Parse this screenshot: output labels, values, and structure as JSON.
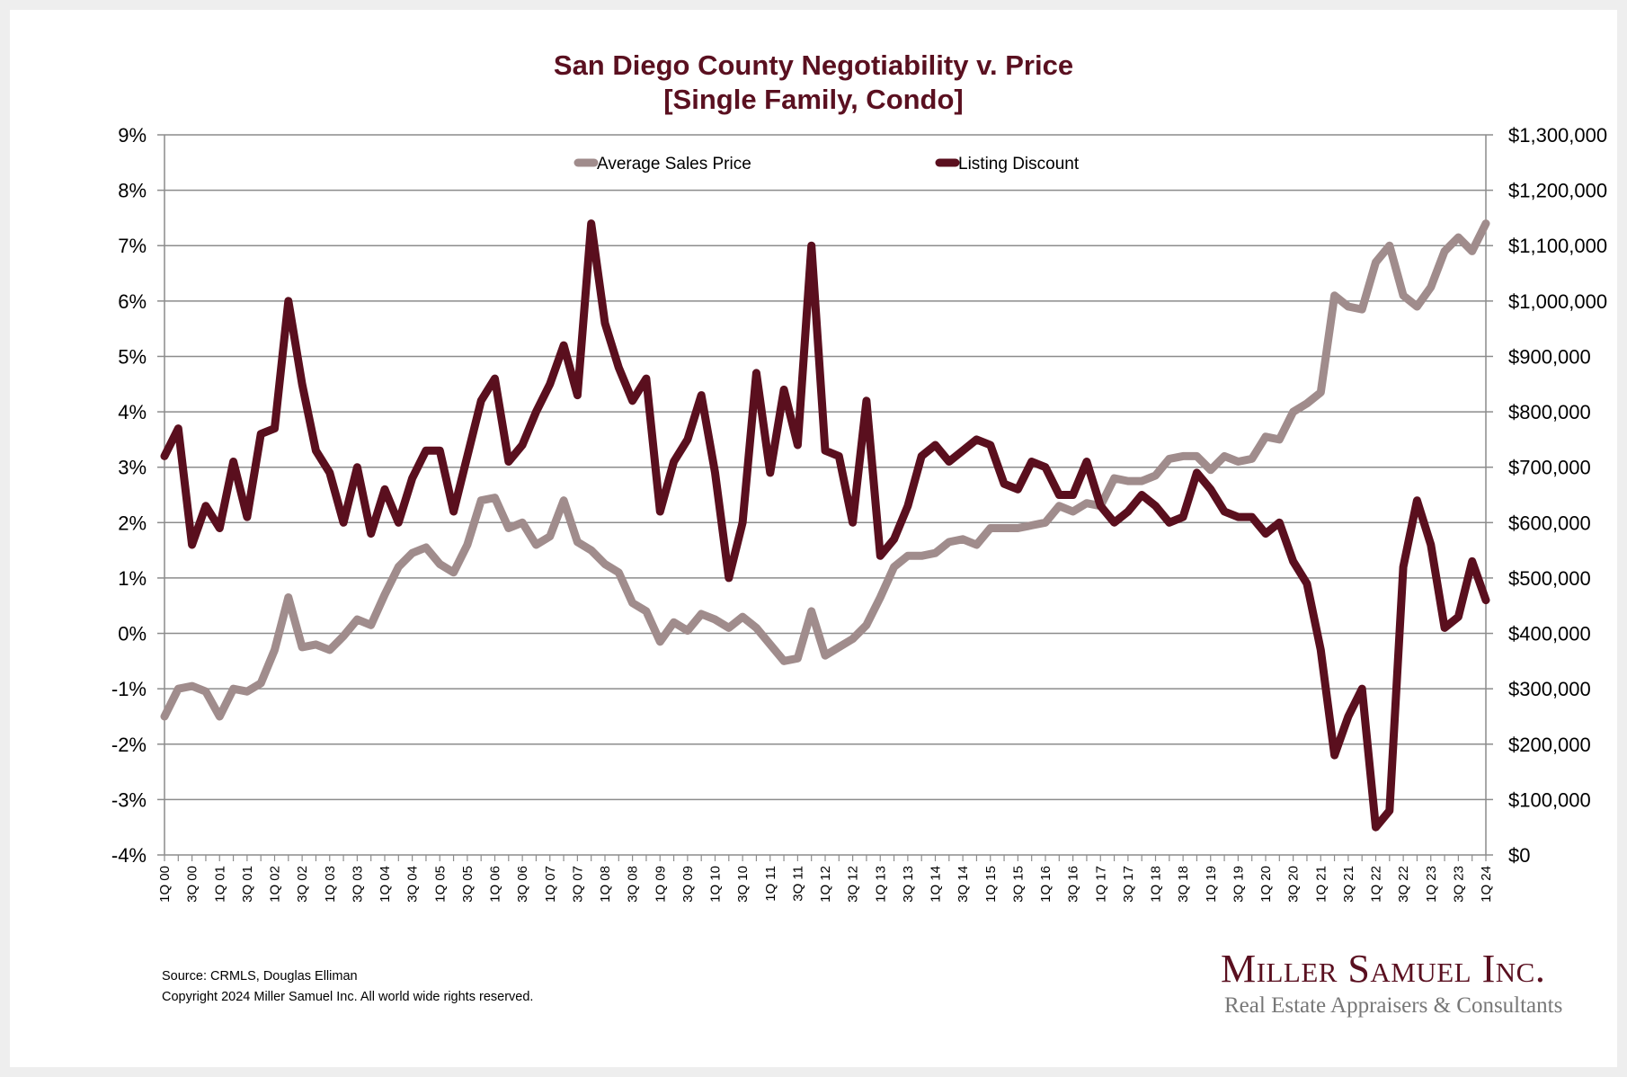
{
  "chart_data": {
    "type": "line",
    "title": "San Diego County Negotiability v. Price",
    "subtitle": "[Single Family, Condo]",
    "xlabel": "",
    "ylabel_left": "",
    "ylabel_right": "",
    "y_left_lim": [
      -4,
      9
    ],
    "y_left_ticks": [
      "9%",
      "8%",
      "7%",
      "6%",
      "5%",
      "4%",
      "3%",
      "2%",
      "1%",
      "0%",
      "-1%",
      "-2%",
      "-3%",
      "-4%"
    ],
    "y_right_lim": [
      0,
      1300000
    ],
    "y_right_ticks": [
      "$1,300,000",
      "$1,200,000",
      "$1,100,000",
      "$1,000,000",
      "$900,000",
      "$800,000",
      "$700,000",
      "$600,000",
      "$500,000",
      "$400,000",
      "$300,000",
      "$200,000",
      "$100,000",
      "$0"
    ],
    "grid": true,
    "legend_position": "top-center",
    "x_tick_labels": [
      "1Q 00",
      "3Q 00",
      "1Q 01",
      "3Q 01",
      "1Q 02",
      "3Q 02",
      "1Q 03",
      "3Q 03",
      "1Q 04",
      "3Q 04",
      "1Q 05",
      "3Q 05",
      "1Q 06",
      "3Q 06",
      "1Q 07",
      "3Q 07",
      "1Q 08",
      "3Q 08",
      "1Q 09",
      "3Q 09",
      "1Q 10",
      "3Q 10",
      "1Q 11",
      "3Q 11",
      "1Q 12",
      "3Q 12",
      "1Q 13",
      "3Q 13",
      "1Q 14",
      "3Q 14",
      "1Q 15",
      "3Q 15",
      "1Q 16",
      "3Q 16",
      "1Q 17",
      "3Q 17",
      "1Q 18",
      "3Q 18",
      "1Q 19",
      "3Q 19",
      "1Q 20",
      "3Q 20",
      "1Q 21",
      "3Q 21",
      "1Q 22",
      "3Q 22",
      "1Q 23",
      "3Q 23",
      "1Q 24"
    ],
    "x_start": "1Q 00",
    "x_end": "1Q 24",
    "x_count": 97,
    "series": [
      {
        "name": "Average Sales Price",
        "axis": "right",
        "color": "#a08c8c",
        "values": [
          250000,
          300000,
          305000,
          295000,
          250000,
          300000,
          295000,
          310000,
          370000,
          465000,
          375000,
          380000,
          370000,
          395000,
          425000,
          415000,
          470000,
          520000,
          545000,
          555000,
          525000,
          510000,
          560000,
          640000,
          645000,
          590000,
          600000,
          560000,
          575000,
          640000,
          565000,
          550000,
          525000,
          510000,
          455000,
          440000,
          385000,
          420000,
          405000,
          435000,
          425000,
          410000,
          430000,
          410000,
          380000,
          350000,
          355000,
          440000,
          360000,
          375000,
          390000,
          415000,
          465000,
          520000,
          540000,
          540000,
          545000,
          565000,
          570000,
          560000,
          590000,
          590000,
          590000,
          595000,
          600000,
          630000,
          620000,
          635000,
          630000,
          680000,
          675000,
          675000,
          685000,
          715000,
          720000,
          720000,
          695000,
          720000,
          710000,
          715000,
          755000,
          750000,
          800000,
          815000,
          835000,
          1010000,
          990000,
          985000,
          1070000,
          1100000,
          1010000,
          990000,
          1025000,
          1090000,
          1115000,
          1090000,
          1140000
        ]
      },
      {
        "name": "Listing Discount",
        "axis": "left",
        "color": "#5a0f1e",
        "values": [
          3.2,
          3.7,
          1.6,
          2.3,
          1.9,
          3.1,
          2.1,
          3.6,
          3.7,
          6.0,
          4.5,
          3.3,
          2.9,
          2.0,
          3.0,
          1.8,
          2.6,
          2.0,
          2.8,
          3.3,
          3.3,
          2.2,
          3.2,
          4.2,
          4.6,
          3.1,
          3.4,
          4.0,
          4.5,
          5.2,
          4.3,
          7.4,
          5.6,
          4.8,
          4.2,
          4.6,
          2.2,
          3.1,
          3.5,
          4.3,
          2.9,
          1.0,
          2.0,
          4.7,
          2.9,
          4.4,
          3.4,
          7.0,
          3.3,
          3.2,
          2.0,
          4.2,
          1.4,
          1.7,
          2.3,
          3.2,
          3.4,
          3.1,
          3.3,
          3.5,
          3.4,
          2.7,
          2.6,
          3.1,
          3.0,
          2.5,
          2.5,
          3.1,
          2.3,
          2.0,
          2.2,
          2.5,
          2.3,
          2.0,
          2.1,
          2.9,
          2.6,
          2.2,
          2.1,
          2.1,
          1.8,
          2.0,
          1.3,
          0.9,
          -0.3,
          -2.2,
          -1.5,
          -1.0,
          -3.5,
          -3.2,
          1.2,
          2.4,
          1.6,
          0.1,
          0.3,
          1.3,
          0.6
        ]
      }
    ]
  },
  "footer": {
    "source": "Source: CRMLS, Douglas Elliman",
    "copyright": "Copyright 2024 Miller Samuel Inc.  All world wide rights reserved."
  },
  "logo": {
    "name": "Miller Samuel Inc.",
    "tagline": "Real Estate Appraisers & Consultants"
  }
}
